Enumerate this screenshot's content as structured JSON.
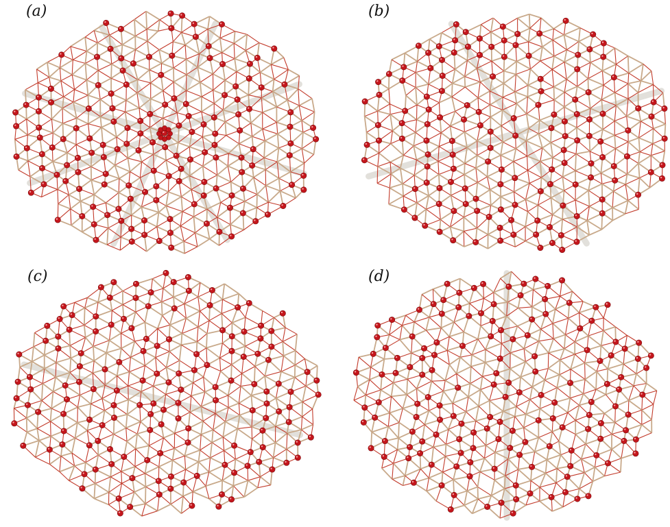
{
  "panels": [
    {
      "label": "(a)",
      "defect": "center",
      "bond_color": "#c8a98a",
      "red_bond_color": "#c23a2a",
      "atom_color": "#c4161c"
    },
    {
      "label": "(b)",
      "defect": "diagonal",
      "bond_color": "#c8a98a",
      "red_bond_color": "#c23a2a",
      "atom_color": "#c4161c"
    },
    {
      "label": "(c)",
      "defect": "line",
      "bond_color": "#c8a98a",
      "red_bond_color": "#c23a2a",
      "atom_color": "#c4161c"
    },
    {
      "label": "(d)",
      "defect": "vertical",
      "bond_color": "#c8a98a",
      "red_bond_color": "#c23a2a",
      "atom_color": "#c4161c"
    }
  ]
}
